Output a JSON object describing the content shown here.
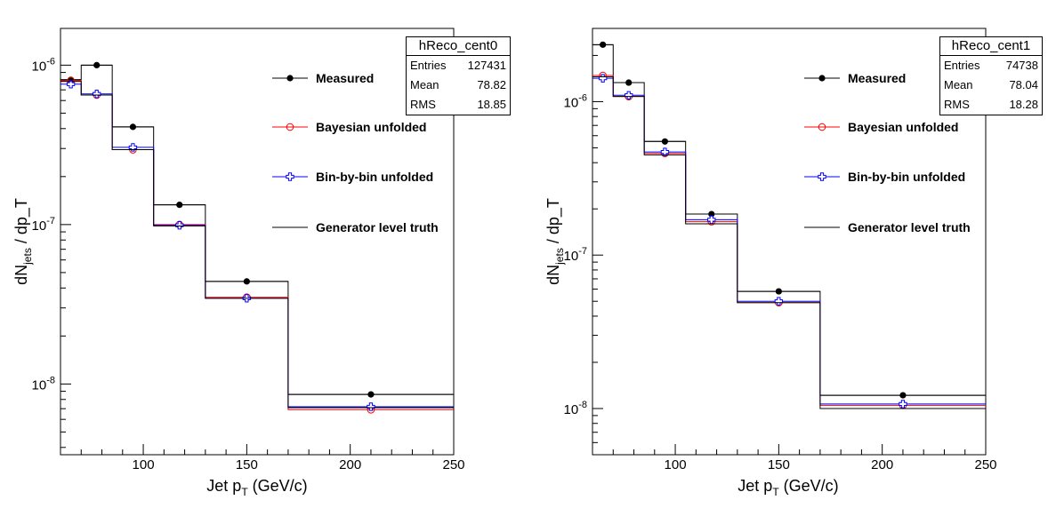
{
  "chart_data": [
    {
      "type": "line",
      "title": "",
      "xlabel": "Jet p_T (GeV/c)",
      "ylabel": "dN_jets / dp_T",
      "xlim": [
        60,
        250
      ],
      "ylim": [
        3.6e-09,
        1.7e-06
      ],
      "yscale": "log",
      "x_ticks": [
        100,
        150,
        200,
        250
      ],
      "y_ticks": [
        1e-08,
        1e-07,
        1e-06
      ],
      "grid": false,
      "legend": {
        "position": "top-right",
        "entries": [
          "Measured",
          "Bayesian unfolded",
          "Bin-by-bin unfolded",
          "Generator level truth"
        ]
      },
      "stats": {
        "name": "hReco_cent0",
        "rows": [
          {
            "label": "Entries",
            "value": "127431"
          },
          {
            "label": "Mean",
            "value": "78.82"
          },
          {
            "label": "RMS",
            "value": "18.85"
          }
        ]
      },
      "bin_edges": [
        60,
        70,
        85,
        105,
        130,
        170,
        250
      ],
      "series": [
        {
          "name": "Measured",
          "color": "#000000",
          "marker": "filled-circle",
          "x": [
            65,
            77.5,
            95,
            117.5,
            150,
            210
          ],
          "values": [
            8.1e-07,
            1e-06,
            4.1e-07,
            1.33e-07,
            4.4e-08,
            8.6e-09
          ]
        },
        {
          "name": "Bayesian unfolded",
          "color": "#ff0000",
          "marker": "open-circle",
          "x": [
            65,
            77.5,
            95,
            117.5,
            150,
            210
          ],
          "values": [
            8e-07,
            6.5e-07,
            2.95e-07,
            1e-07,
            3.5e-08,
            6.9e-09
          ]
        },
        {
          "name": "Bin-by-bin unfolded",
          "color": "#0000ff",
          "marker": "open-cross",
          "x": [
            65,
            77.5,
            95,
            117.5,
            150,
            210
          ],
          "values": [
            7.6e-07,
            6.6e-07,
            3.05e-07,
            9.9e-08,
            3.45e-08,
            7.2e-09
          ]
        },
        {
          "name": "Generator level truth",
          "color": "#000000",
          "marker": "none",
          "x": [
            65,
            77.5,
            95,
            117.5,
            150,
            210
          ],
          "values": [
            7.9e-07,
            6.5e-07,
            2.95e-07,
            9.8e-08,
            3.45e-08,
            7.1e-09
          ]
        }
      ]
    },
    {
      "type": "line",
      "title": "",
      "xlabel": "Jet p_T (GeV/c)",
      "ylabel": "dN_jets / dp_T",
      "xlim": [
        60,
        250
      ],
      "ylim": [
        5e-09,
        3e-06
      ],
      "yscale": "log",
      "x_ticks": [
        100,
        150,
        200,
        250
      ],
      "y_ticks": [
        1e-08,
        1e-07,
        1e-06
      ],
      "grid": false,
      "legend": {
        "position": "top-right",
        "entries": [
          "Measured",
          "Bayesian unfolded",
          "Bin-by-bin unfolded",
          "Generator level truth"
        ]
      },
      "stats": {
        "name": "hReco_cent1",
        "rows": [
          {
            "label": "Entries",
            "value": "74738"
          },
          {
            "label": "Mean",
            "value": "78.04"
          },
          {
            "label": "RMS",
            "value": "18.28"
          }
        ]
      },
      "bin_edges": [
        60,
        70,
        85,
        105,
        130,
        170,
        250
      ],
      "series": [
        {
          "name": "Measured",
          "color": "#000000",
          "marker": "filled-circle",
          "x": [
            65,
            77.5,
            95,
            117.5,
            150,
            210
          ],
          "values": [
            2.35e-06,
            1.33e-06,
            5.5e-07,
            1.85e-07,
            5.8e-08,
            1.22e-08
          ]
        },
        {
          "name": "Bayesian unfolded",
          "color": "#ff0000",
          "marker": "open-circle",
          "x": [
            65,
            77.5,
            95,
            117.5,
            150,
            210
          ],
          "values": [
            1.48e-06,
            1.08e-06,
            4.6e-07,
            1.65e-07,
            4.9e-08,
            1.05e-08
          ]
        },
        {
          "name": "Bin-by-bin unfolded",
          "color": "#0000ff",
          "marker": "open-cross",
          "x": [
            65,
            77.5,
            95,
            117.5,
            150,
            210
          ],
          "values": [
            1.42e-06,
            1.1e-06,
            4.7e-07,
            1.7e-07,
            5e-08,
            1.07e-08
          ]
        },
        {
          "name": "Generator level truth",
          "color": "#000000",
          "marker": "none",
          "x": [
            65,
            77.5,
            95,
            117.5,
            150,
            210
          ],
          "values": [
            1.45e-06,
            1.08e-06,
            4.5e-07,
            1.6e-07,
            4.9e-08,
            1e-08
          ]
        }
      ]
    }
  ]
}
